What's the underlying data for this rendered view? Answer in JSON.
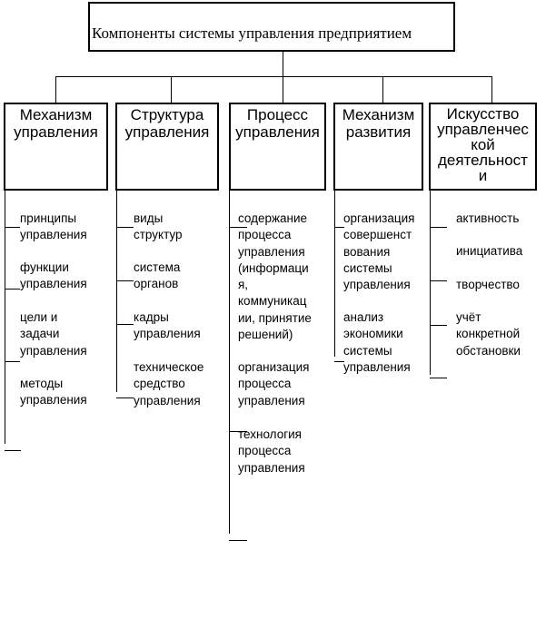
{
  "root": {
    "title": "Компоненты системы управления предприятием"
  },
  "components": [
    {
      "title_lines": [
        "Механизм",
        "управления"
      ],
      "items": [
        [
          "принципы",
          "управления"
        ],
        [
          "функции",
          "управления"
        ],
        [
          "цели и",
          "задачи",
          "управления"
        ],
        [
          "методы",
          "управления"
        ]
      ]
    },
    {
      "title_lines": [
        "Структура",
        "управления"
      ],
      "items": [
        [
          "виды",
          "структур"
        ],
        [
          "система",
          "органов"
        ],
        [
          "кадры",
          "управления"
        ],
        [
          "техническое",
          "средство",
          "управления"
        ]
      ]
    },
    {
      "title_lines": [
        "Процесс",
        "управления"
      ],
      "items": [
        [
          "содержание",
          "процесса",
          "управления",
          "(информаци",
          "я,",
          "коммуникац",
          "ии, принятие",
          "решений)"
        ],
        [
          "организация",
          "процесса",
          "управления"
        ],
        [
          "технология",
          "процесса",
          "управления"
        ]
      ]
    },
    {
      "title_lines": [
        "Механизм",
        "развития"
      ],
      "items": [
        [
          "организация",
          "совершенст",
          "вования",
          "системы",
          "управления"
        ],
        [
          "анализ",
          "экономики",
          "системы",
          "управления"
        ]
      ]
    },
    {
      "title_lines": [
        "Искусство",
        "управленчес",
        "кой",
        "деятельност",
        "и"
      ],
      "items": [
        [
          "активность"
        ],
        [
          "инициатива"
        ],
        [
          "творчество"
        ],
        [
          "учёт",
          "конкретной",
          "обстановки"
        ]
      ]
    }
  ]
}
